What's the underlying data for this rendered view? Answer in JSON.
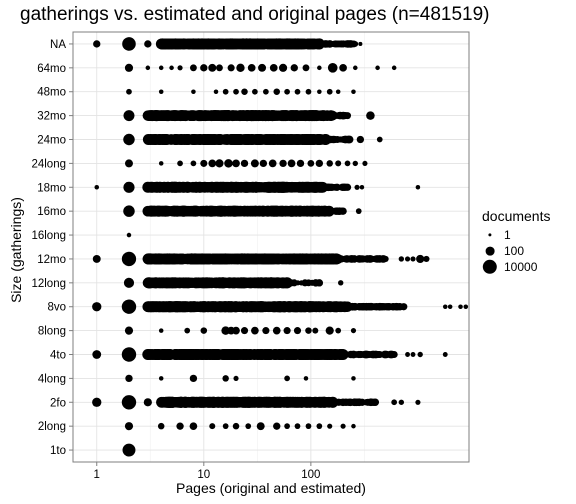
{
  "chart_data": {
    "type": "scatter",
    "title": "gatherings vs. estimated and original pages (n=481519)",
    "xlabel": "Pages (original and estimated)",
    "ylabel": "Size (gatherings)",
    "x_scale": "log10",
    "xlim": [
      0.6,
      3000
    ],
    "x_ticks": [
      1,
      10,
      100
    ],
    "x_tick_labels": [
      "1",
      "10",
      "100"
    ],
    "categories": [
      "NA",
      "64mo",
      "48mo",
      "32mo",
      "24mo",
      "24long",
      "18mo",
      "16mo",
      "16long",
      "12mo",
      "12long",
      "8vo",
      "8long",
      "4to",
      "4long",
      "2fo",
      "2long",
      "1to"
    ],
    "grid": true,
    "legend": {
      "title": "documents",
      "position": "right",
      "entries": [
        {
          "label": "1",
          "count": 1
        },
        {
          "label": "100",
          "count": 100
        },
        {
          "label": "10000",
          "count": 10000
        }
      ]
    },
    "series": [
      {
        "category": "NA",
        "points": [
          [
            1,
            30
          ],
          [
            2,
            5000
          ],
          [
            3,
            30
          ]
        ],
        "band": {
          "from": 4,
          "to": 120,
          "count": 400,
          "cont": 260,
          "cont_count": 25
        },
        "outliers": [
          [
            180,
            3
          ],
          [
            230,
            3
          ],
          [
            290,
            2
          ]
        ]
      },
      {
        "category": "64mo",
        "points": [
          [
            2,
            60
          ],
          [
            3,
            3
          ],
          [
            4,
            3
          ],
          [
            5,
            3
          ],
          [
            6,
            5
          ],
          [
            8,
            20
          ],
          [
            10,
            30
          ],
          [
            12,
            50
          ],
          [
            14,
            20
          ],
          [
            18,
            25
          ],
          [
            22,
            70
          ],
          [
            28,
            40
          ],
          [
            35,
            50
          ],
          [
            45,
            40
          ],
          [
            55,
            60
          ],
          [
            70,
            30
          ],
          [
            90,
            20
          ],
          [
            120,
            3
          ],
          [
            160,
            200
          ],
          [
            200,
            40
          ],
          [
            260,
            3
          ],
          [
            420,
            3
          ],
          [
            600,
            3
          ]
        ]
      },
      {
        "category": "48mo",
        "points": [
          [
            2,
            8
          ],
          [
            4,
            3
          ],
          [
            8,
            3
          ],
          [
            13,
            3
          ],
          [
            16,
            8
          ],
          [
            20,
            8
          ],
          [
            24,
            15
          ],
          [
            30,
            8
          ],
          [
            38,
            8
          ],
          [
            48,
            15
          ],
          [
            60,
            8
          ],
          [
            75,
            8
          ],
          [
            95,
            8
          ],
          [
            120,
            3
          ],
          [
            150,
            8
          ],
          [
            180,
            3
          ],
          [
            250,
            3
          ]
        ]
      },
      {
        "category": "32mo",
        "points": [
          [
            2,
            600
          ]
        ],
        "band": {
          "from": 3,
          "to": 160,
          "count": 300,
          "cont": 220,
          "cont_count": 15
        },
        "outliers": [
          [
            360,
            80
          ]
        ]
      },
      {
        "category": "24mo",
        "points": [
          [
            2,
            900
          ]
        ],
        "band": {
          "from": 3,
          "to": 140,
          "count": 320,
          "cont": 230,
          "cont_count": 18
        },
        "outliers": [
          [
            290,
            30
          ],
          [
            440,
            8
          ]
        ]
      },
      {
        "category": "24long",
        "points": [
          [
            2,
            50
          ],
          [
            4,
            3
          ],
          [
            6,
            8
          ],
          [
            8,
            8
          ],
          [
            10,
            25
          ],
          [
            12,
            40
          ],
          [
            14,
            60
          ],
          [
            17,
            80
          ],
          [
            20,
            40
          ],
          [
            24,
            30
          ],
          [
            30,
            50
          ],
          [
            36,
            30
          ],
          [
            44,
            40
          ],
          [
            55,
            30
          ],
          [
            66,
            40
          ],
          [
            80,
            30
          ],
          [
            100,
            20
          ],
          [
            120,
            30
          ],
          [
            150,
            15
          ],
          [
            180,
            10
          ],
          [
            220,
            8
          ],
          [
            260,
            6
          ],
          [
            320,
            5
          ]
        ]
      },
      {
        "category": "18mo",
        "points": [
          [
            1,
            3
          ],
          [
            2,
            700
          ]
        ],
        "band": {
          "from": 3,
          "to": 130,
          "count": 300,
          "cont": 220,
          "cont_count": 15
        },
        "outliers": [
          [
            270,
            5
          ],
          [
            300,
            3
          ],
          [
            1000,
            3
          ]
        ]
      },
      {
        "category": "16mo",
        "points": [
          [
            2,
            900
          ]
        ],
        "band": {
          "from": 3,
          "to": 150,
          "count": 280,
          "cont": 200,
          "cont_count": 12
        },
        "outliers": [
          [
            280,
            8
          ]
        ]
      },
      {
        "category": "16long",
        "points": [
          [
            2,
            3
          ]
        ]
      },
      {
        "category": "12mo",
        "points": [
          [
            1,
            50
          ],
          [
            2,
            9000
          ]
        ],
        "band": {
          "from": 3,
          "to": 180,
          "count": 450,
          "cont": 500,
          "cont_count": 45
        },
        "outliers": [
          [
            700,
            6
          ],
          [
            800,
            5
          ],
          [
            900,
            5
          ],
          [
            1050,
            60
          ],
          [
            1200,
            12
          ]
        ]
      },
      {
        "category": "12long",
        "points": [
          [
            2,
            300
          ]
        ],
        "band": {
          "from": 3,
          "to": 60,
          "count": 180,
          "cont": 120,
          "cont_count": 10
        },
        "outliers": [
          [
            190,
            6
          ]
        ]
      },
      {
        "category": "8vo",
        "points": [
          [
            1,
            150
          ],
          [
            2,
            20000
          ]
        ],
        "band": {
          "from": 3,
          "to": 220,
          "count": 500,
          "cont": 750,
          "cont_count": 70
        },
        "outliers": [
          [
            1800,
            3
          ],
          [
            2000,
            3
          ],
          [
            2500,
            3
          ],
          [
            2800,
            3
          ]
        ]
      },
      {
        "category": "8long",
        "points": [
          [
            2,
            60
          ],
          [
            4,
            3
          ],
          [
            7,
            8
          ],
          [
            10,
            15
          ],
          [
            16,
            80
          ],
          [
            18,
            40
          ],
          [
            20,
            40
          ],
          [
            24,
            25
          ],
          [
            30,
            40
          ],
          [
            38,
            25
          ],
          [
            48,
            40
          ],
          [
            60,
            25
          ],
          [
            75,
            25
          ],
          [
            95,
            15
          ],
          [
            110,
            10
          ],
          [
            150,
            60
          ],
          [
            180,
            8
          ],
          [
            250,
            5
          ]
        ]
      },
      {
        "category": "4to",
        "points": [
          [
            1,
            100
          ],
          [
            2,
            15000
          ]
        ],
        "band": {
          "from": 3,
          "to": 200,
          "count": 450,
          "cont": 600,
          "cont_count": 40
        },
        "outliers": [
          [
            800,
            4
          ],
          [
            900,
            4
          ],
          [
            1050,
            6
          ],
          [
            1800,
            4
          ]
        ]
      },
      {
        "category": "4long",
        "points": [
          [
            2,
            30
          ],
          [
            4,
            3
          ],
          [
            8,
            30
          ],
          [
            16,
            15
          ],
          [
            20,
            5
          ],
          [
            60,
            8
          ],
          [
            90,
            3
          ],
          [
            250,
            3
          ]
        ]
      },
      {
        "category": "2fo",
        "points": [
          [
            1,
            150
          ],
          [
            2,
            20000
          ],
          [
            3,
            60
          ]
        ],
        "band": {
          "from": 4,
          "to": 160,
          "count": 450,
          "cont": 400,
          "cont_count": 30
        },
        "outliers": [
          [
            600,
            8
          ],
          [
            700,
            6
          ],
          [
            1000,
            5
          ]
        ]
      },
      {
        "category": "2long",
        "points": [
          [
            2,
            60
          ],
          [
            4,
            15
          ],
          [
            6,
            30
          ],
          [
            8,
            40
          ],
          [
            12,
            10
          ],
          [
            16,
            8
          ],
          [
            20,
            15
          ],
          [
            26,
            8
          ],
          [
            34,
            50
          ],
          [
            48,
            30
          ],
          [
            60,
            8
          ],
          [
            75,
            8
          ],
          [
            95,
            8
          ],
          [
            120,
            8
          ],
          [
            150,
            5
          ],
          [
            200,
            5
          ],
          [
            250,
            3
          ]
        ]
      },
      {
        "category": "1to",
        "points": [
          [
            2,
            3000
          ]
        ]
      }
    ]
  }
}
